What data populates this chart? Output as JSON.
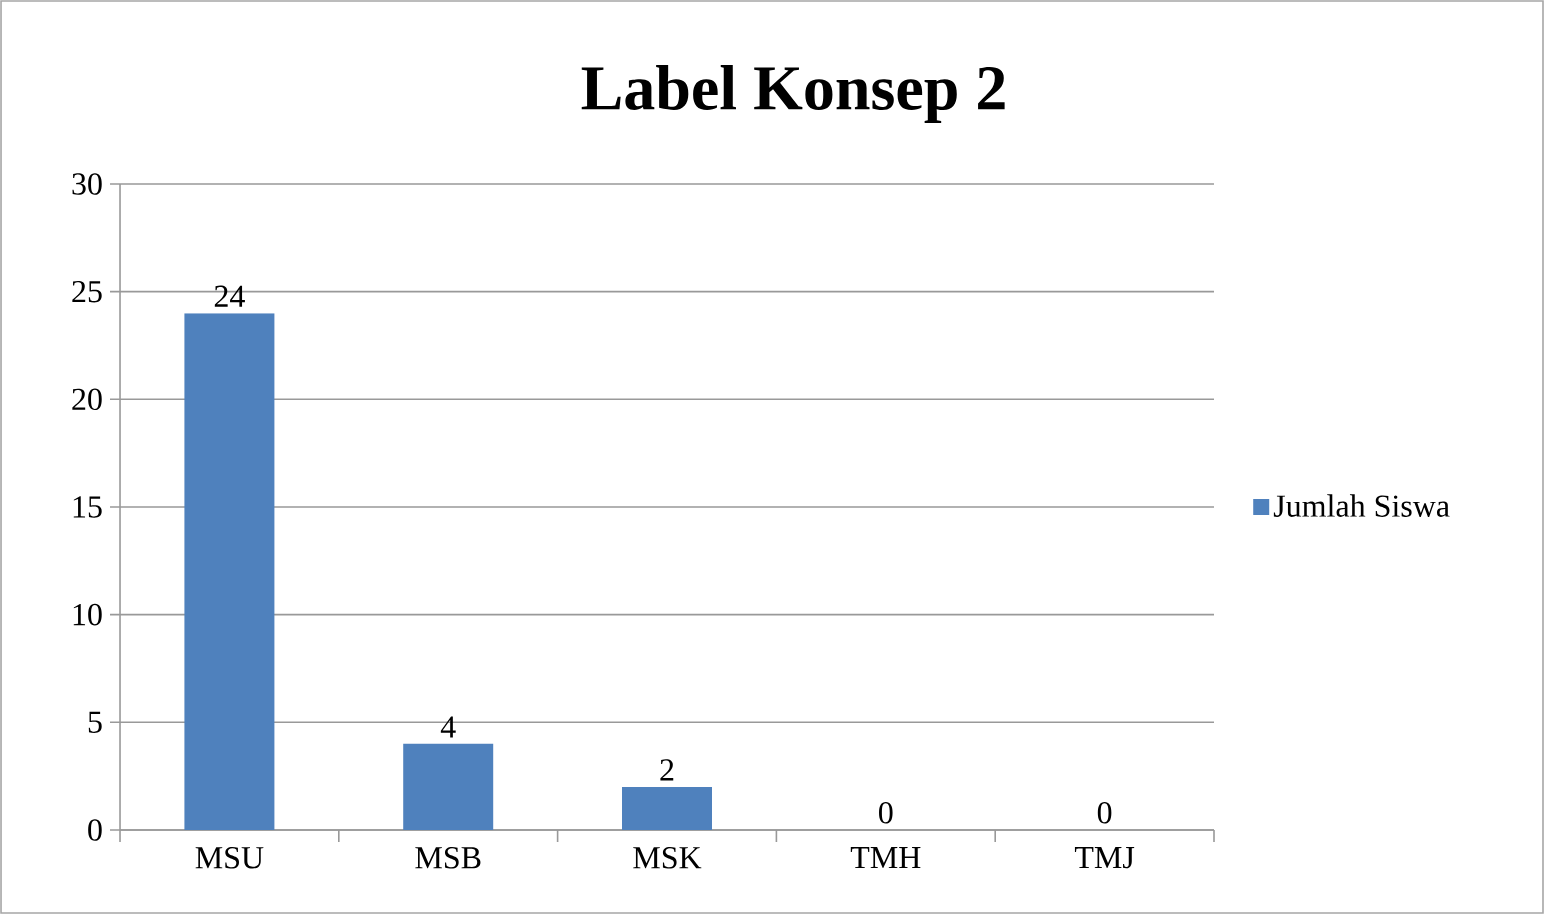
{
  "chart_data": {
    "type": "bar",
    "title": "Label Konsep 2",
    "categories": [
      "MSU",
      "MSB",
      "MSK",
      "TMH",
      "TMJ"
    ],
    "series": [
      {
        "name": "Jumlah Siswa",
        "color": "#4f81bd",
        "values": [
          24,
          4,
          2,
          0,
          0
        ]
      }
    ],
    "ylim": [
      0,
      30
    ],
    "yticks": [
      0,
      5,
      10,
      15,
      20,
      25,
      30
    ],
    "grid": "y",
    "legend": "right",
    "data_labels": true
  }
}
